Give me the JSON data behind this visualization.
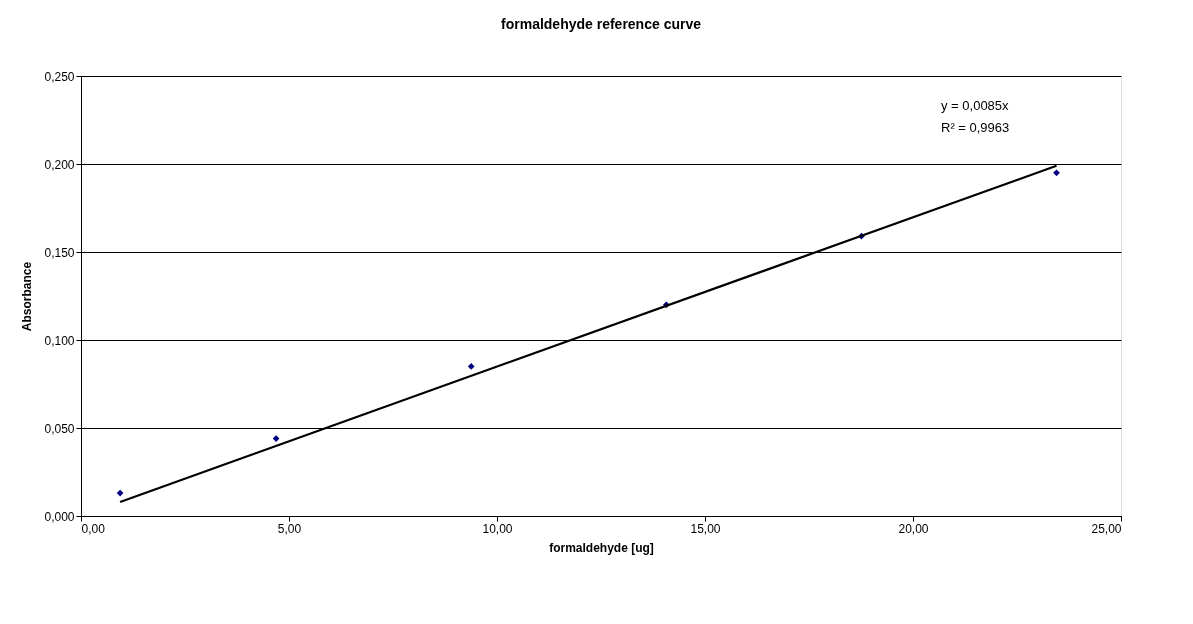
{
  "chart_data": {
    "type": "scatter",
    "title": "formaldehyde reference curve",
    "xlabel": "formaldehyde [ug]",
    "ylabel": "Absorbance",
    "x": [
      0.94,
      4.69,
      9.38,
      14.07,
      18.76,
      23.45
    ],
    "series": [
      {
        "color": "#000080",
        "marker": "diamond",
        "values": [
          0.013,
          0.044,
          0.085,
          0.12,
          0.159,
          0.195
        ]
      },
      {
        "type": "line",
        "color": "#000000",
        "line_style": "solid",
        "x": [
          0.94,
          23.45
        ],
        "values": [
          0.008,
          0.199
        ]
      }
    ],
    "xlim": [
      0,
      25
    ],
    "ylim": [
      0,
      0.25
    ],
    "xticks": [
      {
        "value": 0,
        "label": "0,00"
      },
      {
        "value": 5,
        "label": "5,00"
      },
      {
        "value": 10,
        "label": "10,00"
      },
      {
        "value": 15,
        "label": "15,00"
      },
      {
        "value": 20,
        "label": "20,00"
      },
      {
        "value": 25,
        "label": "25,00"
      }
    ],
    "yticks": [
      {
        "value": 0,
        "label": "0,000"
      },
      {
        "value": 0.05,
        "label": "0,050"
      },
      {
        "value": 0.1,
        "label": "0,100"
      },
      {
        "value": 0.15,
        "label": "0,150"
      },
      {
        "value": 0.2,
        "label": "0,200"
      },
      {
        "value": 0.25,
        "label": "0,250"
      }
    ],
    "annotations": [
      "y = 0,0085x",
      "R² = 0,9963"
    ],
    "grid": "y"
  }
}
